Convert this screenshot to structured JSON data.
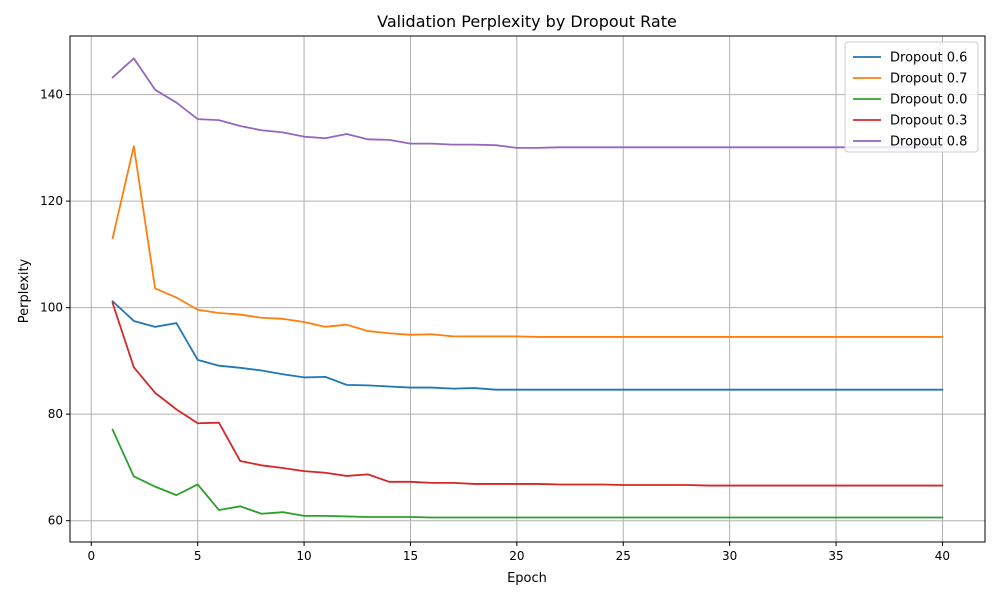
{
  "chart_data": {
    "type": "line",
    "title": "Validation Perplexity by Dropout Rate",
    "xlabel": "Epoch",
    "ylabel": "Perplexity",
    "xlim": [
      -1,
      42
    ],
    "ylim": [
      56,
      151
    ],
    "xticks": [
      0,
      5,
      10,
      15,
      20,
      25,
      30,
      35,
      40
    ],
    "yticks": [
      60,
      80,
      100,
      120,
      140
    ],
    "grid": true,
    "legend_position": "top-right",
    "x": [
      1,
      2,
      3,
      4,
      5,
      6,
      7,
      8,
      9,
      10,
      11,
      12,
      13,
      14,
      15,
      16,
      17,
      18,
      19,
      20,
      21,
      22,
      23,
      24,
      25,
      26,
      27,
      28,
      29,
      30,
      31,
      32,
      33,
      34,
      35,
      36,
      37,
      38,
      39,
      40
    ],
    "series": [
      {
        "name": "Dropout 0.6",
        "color": "#1f77b4",
        "values": [
          101.2,
          97.5,
          96.4,
          97.1,
          90.2,
          89.1,
          88.7,
          88.2,
          87.5,
          86.9,
          87.0,
          85.5,
          85.4,
          85.2,
          85.0,
          85.0,
          84.8,
          84.9,
          84.6,
          84.6,
          84.6,
          84.6,
          84.6,
          84.6,
          84.6,
          84.6,
          84.6,
          84.6,
          84.6,
          84.6,
          84.6,
          84.6,
          84.6,
          84.6,
          84.6,
          84.6,
          84.6,
          84.6,
          84.6,
          84.6
        ]
      },
      {
        "name": "Dropout 0.7",
        "color": "#ff7f0e",
        "values": [
          113.0,
          130.3,
          103.6,
          101.9,
          99.6,
          99.0,
          98.7,
          98.1,
          97.9,
          97.3,
          96.4,
          96.8,
          95.6,
          95.2,
          94.9,
          95.0,
          94.6,
          94.6,
          94.6,
          94.6,
          94.5,
          94.5,
          94.5,
          94.5,
          94.5,
          94.5,
          94.5,
          94.5,
          94.5,
          94.5,
          94.5,
          94.5,
          94.5,
          94.5,
          94.5,
          94.5,
          94.5,
          94.5,
          94.5,
          94.5
        ]
      },
      {
        "name": "Dropout 0.0",
        "color": "#2ca02c",
        "values": [
          77.1,
          68.3,
          66.4,
          64.8,
          66.8,
          62.0,
          62.7,
          61.3,
          61.6,
          60.9,
          60.9,
          60.8,
          60.7,
          60.7,
          60.7,
          60.6,
          60.6,
          60.6,
          60.6,
          60.6,
          60.6,
          60.6,
          60.6,
          60.6,
          60.6,
          60.6,
          60.6,
          60.6,
          60.6,
          60.6,
          60.6,
          60.6,
          60.6,
          60.6,
          60.6,
          60.6,
          60.6,
          60.6,
          60.6,
          60.6
        ]
      },
      {
        "name": "Dropout 0.3",
        "color": "#d62728",
        "values": [
          100.9,
          88.8,
          84.0,
          80.9,
          78.3,
          78.4,
          71.2,
          70.4,
          69.9,
          69.3,
          69.0,
          68.4,
          68.7,
          67.3,
          67.3,
          67.1,
          67.1,
          66.9,
          66.9,
          66.9,
          66.9,
          66.8,
          66.8,
          66.8,
          66.7,
          66.7,
          66.7,
          66.7,
          66.6,
          66.6,
          66.6,
          66.6,
          66.6,
          66.6,
          66.6,
          66.6,
          66.6,
          66.6,
          66.6,
          66.6
        ]
      },
      {
        "name": "Dropout 0.8",
        "color": "#9467bd",
        "values": [
          143.2,
          146.8,
          140.9,
          138.5,
          135.4,
          135.2,
          134.1,
          133.3,
          132.9,
          132.1,
          131.8,
          132.6,
          131.6,
          131.5,
          130.8,
          130.8,
          130.6,
          130.6,
          130.5,
          130.0,
          130.0,
          130.1,
          130.1,
          130.1,
          130.1,
          130.1,
          130.1,
          130.1,
          130.1,
          130.1,
          130.1,
          130.1,
          130.1,
          130.1,
          130.1,
          130.1,
          130.1,
          130.1,
          130.1,
          130.1
        ]
      }
    ]
  }
}
